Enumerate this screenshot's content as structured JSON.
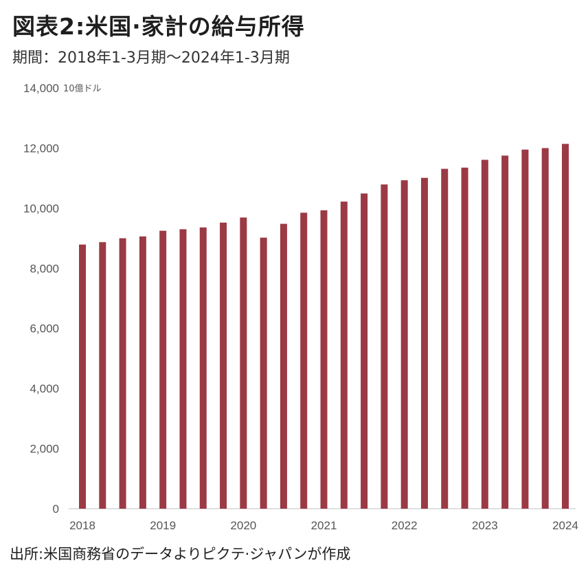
{
  "header": {
    "title": "図表2:米国·家計の給与所得",
    "subtitle": "期間：2018年1-3月期～2024年1-3月期"
  },
  "footer": {
    "source": "出所:米国商務省のデータよりピクテ·ジャパンが作成"
  },
  "chart_data": {
    "type": "bar",
    "title": "図表2:米国·家計の給与所得",
    "subtitle": "期間：2018年1-3月期～2024年1-3月期",
    "ylabel": "10億ドル",
    "xlabel": "",
    "ylim": [
      0,
      14000
    ],
    "yticks": [
      0,
      2000,
      4000,
      6000,
      8000,
      10000,
      12000,
      14000
    ],
    "ytick_labels": [
      "0",
      "2,000",
      "4,000",
      "6,000",
      "8,000",
      "10,000",
      "12,000",
      "14,000"
    ],
    "xtick_labels": [
      "2018",
      "2019",
      "2020",
      "2021",
      "2022",
      "2023",
      "2024"
    ],
    "grid": false,
    "bar_color": "#9b3a45",
    "categories": [
      "2018Q1",
      "2018Q2",
      "2018Q3",
      "2018Q4",
      "2019Q1",
      "2019Q2",
      "2019Q3",
      "2019Q4",
      "2020Q1",
      "2020Q2",
      "2020Q3",
      "2020Q4",
      "2021Q1",
      "2021Q2",
      "2021Q3",
      "2021Q4",
      "2022Q1",
      "2022Q2",
      "2022Q3",
      "2022Q4",
      "2023Q1",
      "2023Q2",
      "2023Q3",
      "2023Q4",
      "2024Q1"
    ],
    "values": [
      8790,
      8870,
      9000,
      9060,
      9250,
      9300,
      9360,
      9520,
      9690,
      9020,
      9480,
      9850,
      9930,
      10220,
      10490,
      10790,
      10930,
      11010,
      11310,
      11350,
      11610,
      11750,
      11950,
      12000,
      12140
    ]
  }
}
